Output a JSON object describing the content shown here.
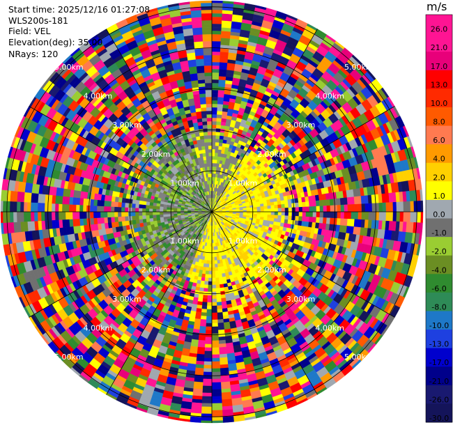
{
  "header": {
    "start_time": "Start time: 2025/12/16 01:27:08",
    "instrument": "WLS200s-181",
    "field": "Field: VEL",
    "elevation": "Elevation(deg): 35.00",
    "nrays": "NRays: 120"
  },
  "colorbar": {
    "unit": "m/s",
    "ticks": [
      "26.0",
      "21.0",
      "17.0",
      "13.0",
      "10.0",
      "8.0",
      "6.0",
      "4.0",
      "2.0",
      "1.0",
      "0.0",
      "-1.0",
      "-2.0",
      "-4.0",
      "-6.0",
      "-8.0",
      "-10.0",
      "-13.0",
      "-17.0",
      "-21.0",
      "-26.0",
      "-30.0"
    ],
    "colors": [
      "#ff1493",
      "#ff1493",
      "#e8007a",
      "#ff0000",
      "#ff2a00",
      "#ff5a00",
      "#ff7a50",
      "#ff9a00",
      "#ffd000",
      "#ffff00",
      "#a0a8b0",
      "#707070",
      "#9acd32",
      "#6b8e23",
      "#2f8b2f",
      "#2e8b57",
      "#1e78c8",
      "#1e40e0",
      "#0000cd",
      "#00008b",
      "#191970",
      "#14145a"
    ]
  },
  "chart_data": {
    "type": "ppi",
    "field": "VEL",
    "units": "m/s",
    "n_rays": 120,
    "elevation_deg": 35.0,
    "range_rings_km": [
      1,
      2,
      3,
      4,
      5
    ],
    "ring_labels": [
      {
        "text": "1.00km",
        "ring": 1
      },
      {
        "text": "1.00km",
        "ring": 1
      },
      {
        "text": "1.00km",
        "ring": 1
      },
      {
        "text": "1.00km",
        "ring": 1
      },
      {
        "text": "2.00km",
        "ring": 2
      },
      {
        "text": "2.00km",
        "ring": 2
      },
      {
        "text": "2.00km",
        "ring": 2
      },
      {
        "text": "2.00km",
        "ring": 2
      },
      {
        "text": "3.00km",
        "ring": 3
      },
      {
        "text": "3.00km",
        "ring": 3
      },
      {
        "text": "3.00km",
        "ring": 3
      },
      {
        "text": "3.00km",
        "ring": 3
      },
      {
        "text": "4.00km",
        "ring": 4
      },
      {
        "text": "4.00km",
        "ring": 4
      },
      {
        "text": "4.00km",
        "ring": 4
      },
      {
        "text": "4.00km",
        "ring": 4
      },
      {
        "text": "5.00km",
        "ring": 5
      },
      {
        "text": "5.00km",
        "ring": 5
      },
      {
        "text": "5.00km",
        "ring": 5
      },
      {
        "text": "5.00km",
        "ring": 5
      }
    ],
    "value_range": [
      -30,
      26
    ],
    "near_range_pattern": "west: green/gray (-2 to 0 m/s); east/south: yellow (1 to 4 m/s); far range: noise across full scale"
  }
}
